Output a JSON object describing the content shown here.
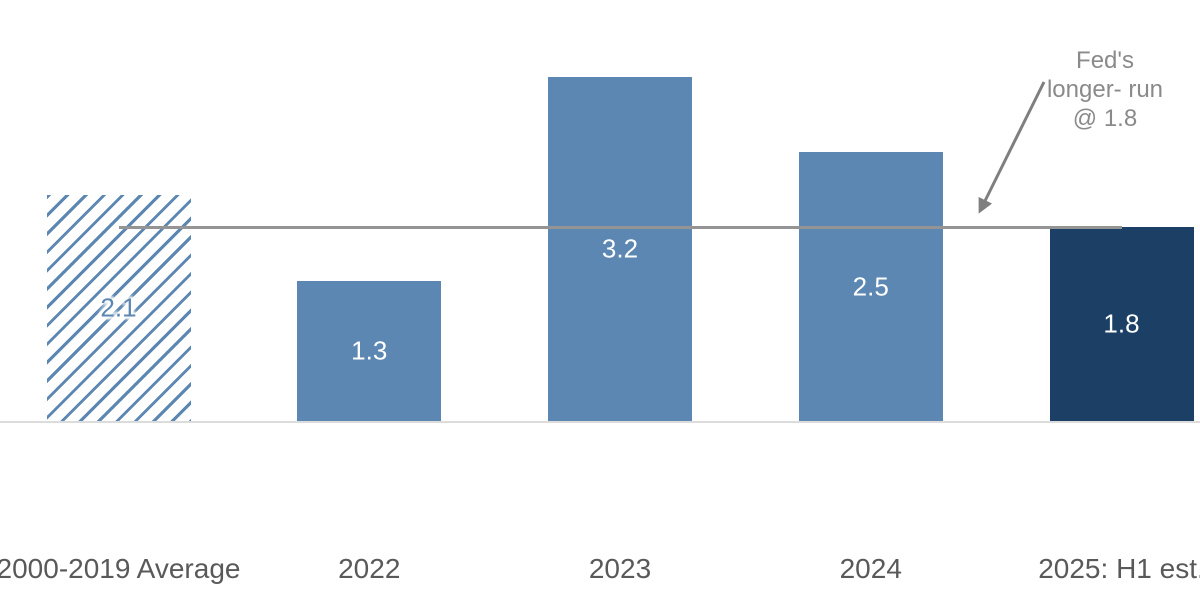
{
  "chart_data": {
    "type": "bar",
    "title": "",
    "categories": [
      "2000-2019 Average",
      "2022",
      "2023",
      "2024",
      "2025: H1 est."
    ],
    "values": [
      2.1,
      1.3,
      3.2,
      2.5,
      1.8
    ],
    "value_labels": [
      "2.1",
      "1.3",
      "3.2",
      "2.5",
      "1.8"
    ],
    "bar_styles": [
      "hatched",
      "solid",
      "solid",
      "solid",
      "dark"
    ],
    "xlabel": "",
    "ylabel": "",
    "ylim": [
      0,
      3.9
    ],
    "grid": false,
    "legend": false,
    "reference_line": {
      "value": 1.8,
      "annotation_lines": [
        "Fed's",
        "longer- run",
        "@ 1.8"
      ]
    },
    "colors": {
      "solid_bar": "#5B87B2",
      "dark_bar": "#1C3F66",
      "hatch_stripe": "#5B87B2",
      "reference_line": "#949494",
      "arrow": "#7F7F7F",
      "annotation_text": "#8A8A8A",
      "category_label": "#595959",
      "value_label_light": "#FFFFFF",
      "value_label_hatched": "#5B87B2",
      "axis_line": "#DCDCDC"
    }
  }
}
